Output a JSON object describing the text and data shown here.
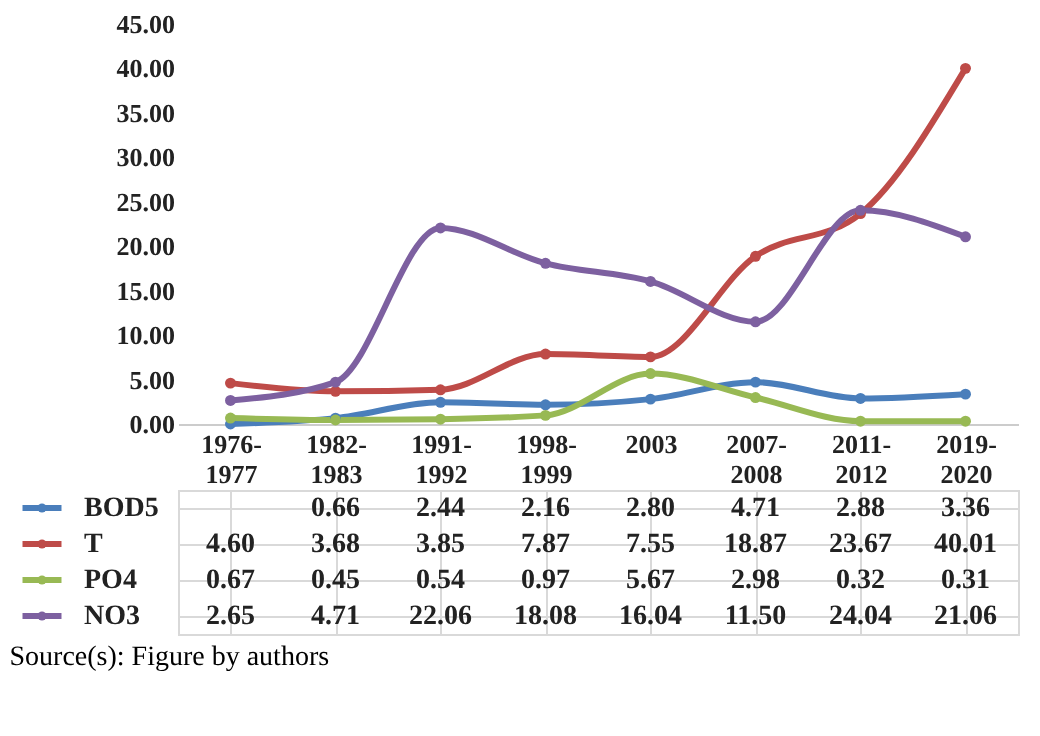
{
  "chart_data": {
    "type": "line",
    "categories": [
      "1976-1977",
      "1982-1983",
      "1991-1992",
      "1998-1999",
      "2003",
      "2007-2008",
      "2011-2012",
      "2019-2020"
    ],
    "series": [
      {
        "name": "BOD5",
        "color": "#4a7ebb",
        "values": [
          0,
          0.66,
          2.44,
          2.16,
          2.8,
          4.71,
          2.88,
          3.36
        ],
        "value_labels": [
          null,
          "0.66",
          "2.44",
          "2.16",
          "2.80",
          "4.71",
          "2.88",
          "3.36"
        ]
      },
      {
        "name": "T",
        "color": "#be4b48",
        "values": [
          4.6,
          3.68,
          3.85,
          7.87,
          7.55,
          18.87,
          23.67,
          40.01
        ],
        "value_labels": [
          "4.60",
          "3.68",
          "3.85",
          "7.87",
          "7.55",
          "18.87",
          "23.67",
          "40.01"
        ]
      },
      {
        "name": "PO4",
        "color": "#98b954",
        "values": [
          0.67,
          0.45,
          0.54,
          0.97,
          5.67,
          2.98,
          0.32,
          0.31
        ],
        "value_labels": [
          "0.67",
          "0.45",
          "0.54",
          "0.97",
          "5.67",
          "2.98",
          "0.32",
          "0.31"
        ]
      },
      {
        "name": "NO3",
        "color": "#7d60a0",
        "values": [
          2.65,
          4.71,
          22.06,
          18.08,
          16.04,
          11.5,
          24.04,
          21.06
        ],
        "value_labels": [
          "2.65",
          "4.71",
          "22.06",
          "18.08",
          "16.04",
          "11.50",
          "24.04",
          "21.06"
        ]
      }
    ],
    "ylim": [
      0,
      45
    ],
    "yticks": [
      {
        "value": 0,
        "label": "0.00"
      },
      {
        "value": 5,
        "label": "5.00"
      },
      {
        "value": 10,
        "label": "10.00"
      },
      {
        "value": 15,
        "label": "15.00"
      },
      {
        "value": 20,
        "label": "20.00"
      },
      {
        "value": 25,
        "label": "25.00"
      },
      {
        "value": 30,
        "label": "30.00"
      },
      {
        "value": 35,
        "label": "35.00"
      },
      {
        "value": 40,
        "label": "40.00"
      },
      {
        "value": 45,
        "label": "45.00"
      }
    ],
    "legend": "bottom left",
    "marker": "circle",
    "line_style": "solid",
    "annotations": [
      "Source(s): Figure by authors"
    ]
  }
}
